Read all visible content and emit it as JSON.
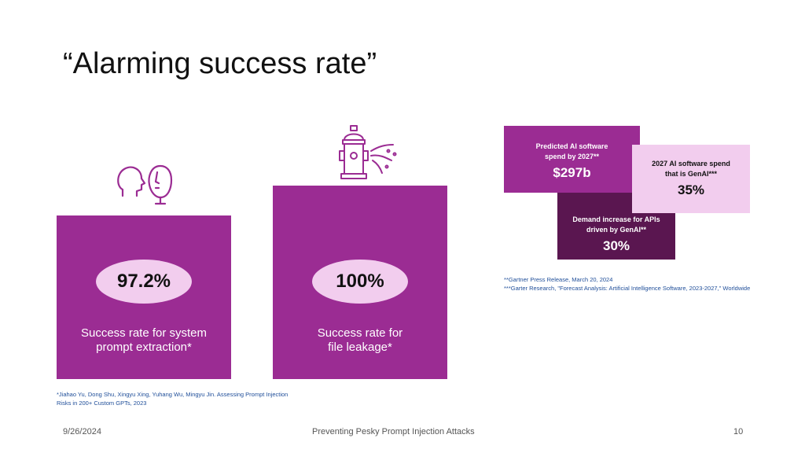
{
  "slide": {
    "title": "“Alarming success rate”",
    "cards": [
      {
        "value": "97.2%",
        "line1": "Success rate for system",
        "line2": "prompt extraction*"
      },
      {
        "value": "100%",
        "line1": "Success rate for",
        "line2": "file leakage*"
      }
    ],
    "stats": {
      "predicted": {
        "line1": "Predicted AI software",
        "line2": "spend by 2027**",
        "value": "$297b"
      },
      "genai": {
        "line1": "2027 AI software spend",
        "line2": "that is GenAI***",
        "value": "35%"
      },
      "apis": {
        "line1": "Demand increase for APIs",
        "line2": "driven by GenAI**",
        "value": "30%"
      }
    },
    "notes": [
      "**Gartner Press Release, March 20, 2024",
      "***Garter Research, \"Forecast Analysis: Artificial Intelligence Software, 2023-2027,\" Worldwide"
    ],
    "citation": {
      "line1": "*Jiahao Yu, Dong Shu, Xingyu Xing, Yuhang Wu, Mingyu Jin.  Assessing Prompt Injection",
      "line2": "Risks in 200+ Custom GPTs, 2023"
    },
    "footer": {
      "date": "9/26/2024",
      "center": "Preventing Pesky Prompt Injection Attacks",
      "page": "10"
    },
    "icons": {
      "faces": "two-faces-icon",
      "hydrant": "fire-hydrant-icon"
    },
    "colors": {
      "purple": "#9b2c93",
      "dark_purple": "#5a1650",
      "pink": "#f2cdee",
      "link_blue": "#1f4e99"
    }
  }
}
